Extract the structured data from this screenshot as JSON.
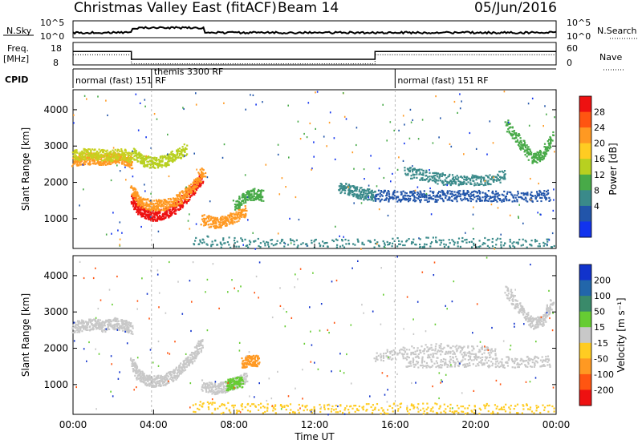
{
  "header": {
    "station": "Christmas Valley East (fitACF)",
    "beam": "Beam 14",
    "date": "05/Jun/2016"
  },
  "top_panel": {
    "nsky_label": "N.Sky",
    "nsearch_label": "N.Search",
    "nsky_ticks": [
      "10^5",
      "10^0"
    ],
    "nsearch_ticks": [
      "10^5",
      "10^0"
    ],
    "freq_label_1": "Freq.",
    "freq_label_2": "[MHz]",
    "freq_ticks": [
      "18",
      "8"
    ],
    "nave_label": "Nave",
    "nave_ticks": [
      "60",
      "0"
    ],
    "cpid_label": "CPID",
    "cpid_segments": [
      {
        "text": "normal (fast) 151 RF",
        "start_h": 0.0,
        "end_h": 3.9
      },
      {
        "text": "themis 3300 RF",
        "start_h": 3.9,
        "end_h": 16.0
      },
      {
        "text": "normal (fast) 151 RF",
        "start_h": 16.0,
        "end_h": 24.0
      }
    ]
  },
  "power_panel": {
    "ylabel": "Slant Range [km]",
    "colorbar_label": "Power [dB]",
    "colorbar_ticks": [
      "28",
      "24",
      "20",
      "16",
      "12",
      "8",
      "4"
    ],
    "colorbar_colors": [
      "#ee1111",
      "#ff5511",
      "#ff9922",
      "#ffcc22",
      "#b8d020",
      "#48aa48",
      "#3a8a8a",
      "#2255aa",
      "#1133ee"
    ]
  },
  "velocity_panel": {
    "ylabel": "Slant Range [km]",
    "colorbar_label": "Velocity [m s⁻¹]",
    "colorbar_ticks": [
      "200",
      "100",
      "50",
      "15",
      "-15",
      "-50",
      "-100",
      "-200"
    ],
    "colorbar_colors": [
      "#1133cc",
      "#2266aa",
      "#3a8a6a",
      "#66cc33",
      "#c8c8c8",
      "#ffcc22",
      "#ff9922",
      "#ff5511",
      "#ee1111"
    ]
  },
  "x_axis": {
    "title": "Time UT",
    "ticks": [
      "00:00",
      "04:00",
      "08:00",
      "12:00",
      "16:00",
      "20:00",
      "00:00"
    ]
  },
  "chart_data": {
    "type": "heatmap",
    "x_range_hours": [
      0,
      24
    ],
    "y_range_km": [
      180,
      4550
    ],
    "y_ticks": [
      1000,
      2000,
      3000,
      4000
    ],
    "power_bands": [
      {
        "x": [
          0.0,
          0.5,
          1.0,
          1.5,
          2.0,
          2.5,
          2.9
        ],
        "y": [
          2600,
          2650,
          2680,
          2620,
          2700,
          2650,
          2550
        ],
        "color": "#ff9922"
      },
      {
        "x": [
          0.0,
          0.6,
          1.2,
          1.8,
          2.4,
          2.9
        ],
        "y": [
          2750,
          2800,
          2780,
          2750,
          2800,
          2700
        ],
        "color": "#c8d020"
      },
      {
        "x": [
          2.9,
          3.2,
          3.6,
          4.0,
          4.5,
          5.0,
          5.5,
          6.0,
          6.4
        ],
        "y": [
          1600,
          1300,
          1150,
          1100,
          1150,
          1300,
          1550,
          1850,
          2200
        ],
        "color": "#ee1111"
      },
      {
        "x": [
          2.9,
          3.3,
          3.8,
          4.3,
          4.9,
          5.5,
          6.0,
          6.5
        ],
        "y": [
          1800,
          1500,
          1400,
          1380,
          1450,
          1650,
          1950,
          2350
        ],
        "color": "#ff9922"
      },
      {
        "x": [
          3.0,
          3.5,
          4.0,
          4.5,
          5.0,
          5.6
        ],
        "y": [
          2800,
          2600,
          2550,
          2600,
          2750,
          2950
        ],
        "color": "#b8d020"
      },
      {
        "x": [
          6.4,
          7.0,
          7.5,
          8.0,
          8.6
        ],
        "y": [
          1000,
          900,
          950,
          1050,
          1250
        ],
        "color": "#ff9922"
      },
      {
        "x": [
          8.0,
          8.5,
          9.0,
          9.4
        ],
        "y": [
          1400,
          1600,
          1700,
          1650
        ],
        "color": "#48aa48"
      },
      {
        "x": [
          13.2,
          13.8,
          14.4,
          15.0
        ],
        "y": [
          1900,
          1800,
          1700,
          1650
        ],
        "color": "#3a8a8a"
      },
      {
        "x": [
          15.0,
          16.0,
          17.0,
          18.0,
          19.0,
          20.0,
          21.0,
          22.5,
          23.7
        ],
        "y": [
          1650,
          1640,
          1630,
          1640,
          1650,
          1650,
          1640,
          1640,
          1650
        ],
        "color": "#2255aa"
      },
      {
        "x": [
          16.5,
          17.5,
          18.5,
          19.5,
          20.5,
          21.5
        ],
        "y": [
          2300,
          2200,
          2100,
          2050,
          2100,
          2200
        ],
        "color": "#3a8a8a"
      },
      {
        "x": [
          21.5,
          22.2,
          22.8,
          23.3,
          23.8
        ],
        "y": [
          3600,
          3100,
          2700,
          2750,
          3300
        ],
        "color": "#48aa48"
      },
      {
        "x": [
          6.0,
          9.0,
          12.0,
          15.0,
          18.0,
          21.0,
          24.0
        ],
        "y": [
          400,
          330,
          300,
          320,
          360,
          330,
          300
        ],
        "color": "#3a8a8a"
      }
    ],
    "velocity_bands": [
      {
        "x": [
          0.0,
          0.5,
          1.0,
          1.5,
          2.0,
          2.5,
          2.9
        ],
        "y": [
          2600,
          2650,
          2680,
          2620,
          2700,
          2650,
          2550
        ],
        "color": "#c8c8c8"
      },
      {
        "x": [
          2.9,
          3.2,
          3.6,
          4.0,
          4.5,
          5.0,
          5.5,
          6.0,
          6.4
        ],
        "y": [
          1600,
          1300,
          1150,
          1100,
          1150,
          1300,
          1550,
          1850,
          2200
        ],
        "color": "#c8c8c8"
      },
      {
        "x": [
          6.4,
          7.0,
          7.5,
          8.0,
          8.6
        ],
        "y": [
          1000,
          900,
          950,
          1050,
          1250
        ],
        "color": "#c8c8c8"
      },
      {
        "x": [
          8.4,
          8.8,
          9.2
        ],
        "y": [
          1600,
          1700,
          1650
        ],
        "color": "#ff9922"
      },
      {
        "x": [
          7.6,
          8.0,
          8.4
        ],
        "y": [
          1000,
          1050,
          1100
        ],
        "color": "#66cc33"
      },
      {
        "x": [
          16.5,
          18.0,
          19.5,
          21.0,
          22.5,
          23.7
        ],
        "y": [
          1650,
          1640,
          1650,
          1640,
          1640,
          1650
        ],
        "color": "#c8c8c8"
      },
      {
        "x": [
          21.5,
          22.2,
          22.8,
          23.3,
          23.8
        ],
        "y": [
          3600,
          3100,
          2700,
          2750,
          3300
        ],
        "color": "#c8c8c8"
      },
      {
        "x": [
          6.0,
          9.0,
          12.0,
          15.0,
          18.0,
          21.0,
          24.0
        ],
        "y": [
          400,
          350,
          320,
          340,
          380,
          350,
          320
        ],
        "color": "#ffcc22"
      },
      {
        "x": [
          15.0,
          16.5,
          18.0,
          19.5,
          21.0
        ],
        "y": [
          1800,
          1900,
          2000,
          1950,
          1900
        ],
        "color": "#c8c8c8"
      }
    ],
    "freq_mhz": {
      "x": [
        0,
        2.9,
        2.9,
        15.0,
        15.0,
        24
      ],
      "y": [
        14,
        14,
        10.5,
        10.5,
        14,
        14
      ]
    },
    "nave": {
      "x": [
        0,
        2.9,
        2.9,
        15.0,
        15.0,
        24
      ],
      "y": [
        27,
        27,
        3,
        3,
        27,
        27
      ]
    }
  }
}
